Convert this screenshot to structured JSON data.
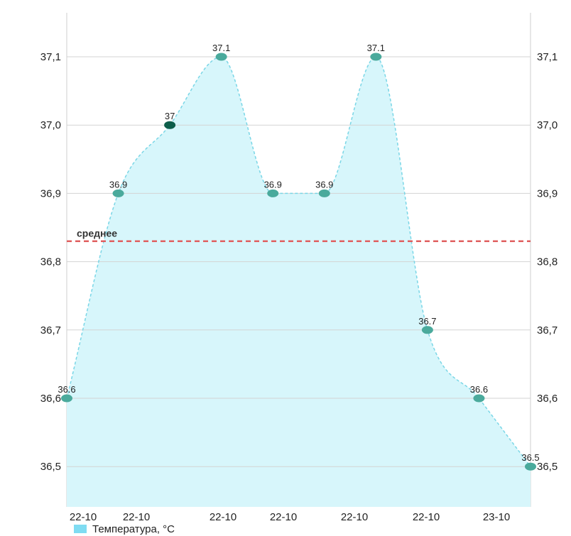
{
  "chart_data": {
    "type": "area",
    "categories": [
      "22-10",
      "22-10",
      "22-10",
      "22-10",
      "22-10",
      "22-10",
      "22-10",
      "22-10",
      "22-10",
      "23-10"
    ],
    "x_tick_labels": [
      "22-10",
      "22-10",
      "22-10",
      "22-10",
      "22-10",
      "22-10",
      "23-10"
    ],
    "series": [
      {
        "name": "Температура, °C",
        "values": [
          36.6,
          36.9,
          37.0,
          37.1,
          36.9,
          36.9,
          37.1,
          36.7,
          36.6,
          36.5
        ],
        "data_labels": [
          "36.6",
          "36.9",
          "37",
          "37.1",
          "36.9",
          "36.9",
          "37.1",
          "36.7",
          "36.6",
          "36.5"
        ]
      }
    ],
    "highlighted_point_index": 2,
    "average": {
      "label": "среднее",
      "value": 36.83
    },
    "y_tick_labels": [
      "36,5",
      "36,6",
      "36,7",
      "36,8",
      "36,9",
      "37,0",
      "37,1"
    ],
    "y_ticks": [
      36.5,
      36.6,
      36.7,
      36.8,
      36.9,
      37.0,
      37.1
    ],
    "ylim": [
      36.44,
      37.17
    ],
    "grid": true,
    "legend_position": "bottom-left",
    "colors": {
      "fill": "#d7f6fb",
      "line": "#7ad6e6",
      "point": "#4aaa9c",
      "highlight": "#0e5e4a",
      "average": "#e06060",
      "grid": "#d3d3d3"
    },
    "title": "",
    "xlabel": "",
    "ylabel": ""
  }
}
